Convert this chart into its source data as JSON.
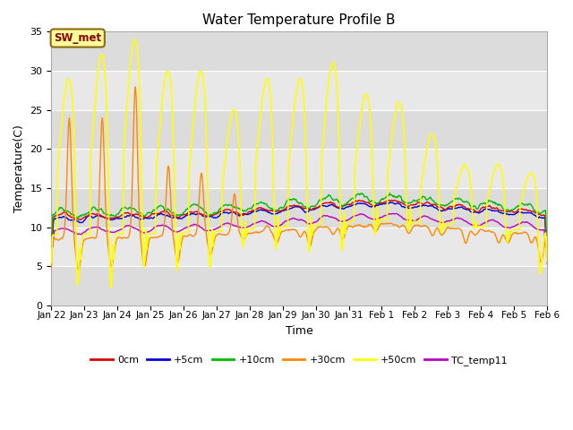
{
  "title": "Water Temperature Profile B",
  "xlabel": "Time",
  "ylabel": "Temperature(C)",
  "ylim": [
    0,
    35
  ],
  "n_days": 15,
  "annotation_text": "SW_met",
  "annotation_color": "#8B0000",
  "annotation_bg": "#FFFF99",
  "annotation_border": "#8B6914",
  "fig_bg": "white",
  "plot_bg": "#E8E8E8",
  "series": [
    {
      "label": "0cm",
      "color": "#DD0000",
      "lw": 1.0,
      "zorder": 5
    },
    {
      "label": "+5cm",
      "color": "#0000DD",
      "lw": 1.0,
      "zorder": 4
    },
    {
      "label": "+10cm",
      "color": "#00BB00",
      "lw": 1.0,
      "zorder": 6
    },
    {
      "label": "+30cm",
      "color": "#FF8800",
      "lw": 1.0,
      "zorder": 7
    },
    {
      "label": "+50cm",
      "color": "#FFFF00",
      "lw": 1.2,
      "zorder": 8
    },
    {
      "label": "TC_temp11",
      "color": "#BB00BB",
      "lw": 1.0,
      "zorder": 3
    }
  ],
  "xtick_labels": [
    "Jan 22",
    "Jan 23",
    "Jan 24",
    "Jan 25",
    "Jan 26",
    "Jan 27",
    "Jan 28",
    "Jan 29",
    "Jan 30",
    "Jan 31",
    "Feb 1",
    "Feb 2",
    "Feb 3",
    "Feb 4",
    "Feb 5",
    "Feb 6"
  ],
  "yticks": [
    0,
    5,
    10,
    15,
    20,
    25,
    30,
    35
  ],
  "band_colors": [
    "#DCDCDC",
    "#E8E8E8"
  ],
  "grid_color": "#C8C8C8"
}
